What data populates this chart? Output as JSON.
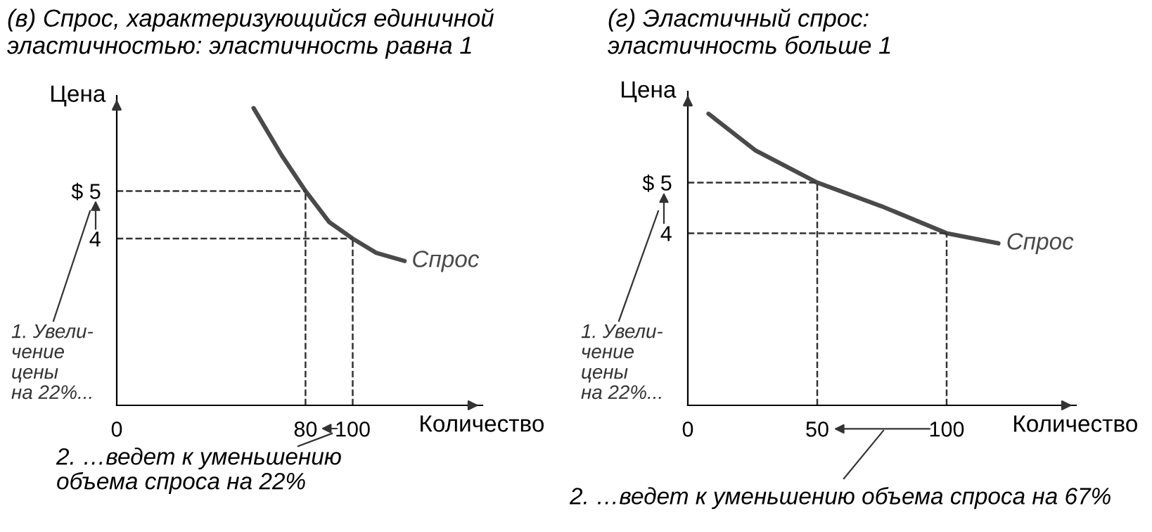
{
  "chart_data": [
    {
      "type": "line",
      "title": "(в) Спрос, характеризующийся единичной\nэластичностью: эластичность равна 1",
      "xlabel": "Количество",
      "ylabel": "Цена",
      "x": [
        58,
        70,
        80,
        90,
        100,
        110,
        122
      ],
      "series": [
        {
          "name": "Спрос",
          "color": "#4a4a4a",
          "values": [
            6.74,
            5.74,
            5,
            4.35,
            4,
            3.7,
            3.53
          ]
        }
      ],
      "xlim": [
        0,
        155
      ],
      "ylim": [
        0.5,
        7
      ],
      "xticks": [
        0,
        80,
        100
      ],
      "yticks": [
        4,
        {
          "value": 5,
          "label": "$ 5"
        }
      ],
      "ref_lines": [
        {
          "axis": "x",
          "value": 80,
          "line_style": "dashed"
        },
        {
          "axis": "x",
          "value": 100,
          "line_style": "dashed"
        },
        {
          "axis": "y",
          "value": 5,
          "line_style": "dashed"
        },
        {
          "axis": "y",
          "value": 4,
          "line_style": "dashed"
        }
      ],
      "annotations": [
        "1. Увели-\nчение\nцены\nна 22%...",
        "2. …ведет к уменьшению\nобъема спроса на 22%"
      ],
      "grid": false,
      "legend": false,
      "marker": "none",
      "line_style": "solid"
    },
    {
      "type": "line",
      "title": "(г) Эластичный спрос:\nэластичность больше 1",
      "xlabel": "Количество",
      "ylabel": "Цена",
      "x": [
        8,
        26,
        50,
        75,
        100,
        120
      ],
      "series": [
        {
          "name": "Спрос",
          "color": "#4a4a4a",
          "values": [
            6.36,
            5.64,
            5,
            4.53,
            4,
            3.8
          ]
        }
      ],
      "xlim": [
        0,
        150
      ],
      "ylim": [
        0.6,
        6.8
      ],
      "xticks": [
        0,
        50,
        100
      ],
      "yticks": [
        4,
        {
          "value": 5,
          "label": "$ 5"
        }
      ],
      "ref_lines": [
        {
          "axis": "x",
          "value": 50,
          "line_style": "dashed"
        },
        {
          "axis": "x",
          "value": 100,
          "line_style": "dashed"
        },
        {
          "axis": "y",
          "value": 5,
          "line_style": "dashed"
        },
        {
          "axis": "y",
          "value": 4,
          "line_style": "dashed"
        }
      ],
      "annotations": [
        "1. Увели-\nчение\nцены\nна 22%...",
        "2. …ведет к уменьшению объема спроса на 67%"
      ],
      "grid": false,
      "legend": false,
      "marker": "none",
      "line_style": "solid"
    }
  ]
}
